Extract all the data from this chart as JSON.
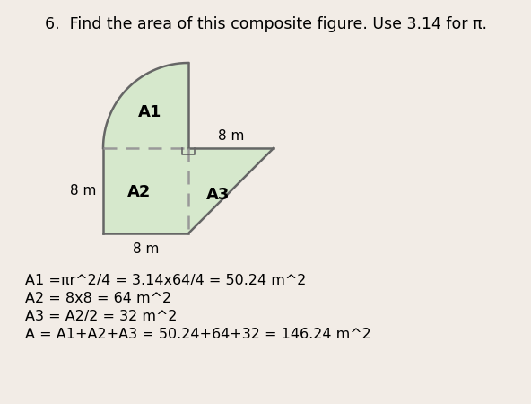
{
  "title": "6.  Find the area of this composite figure. Use 3.14 for π.",
  "title_fontsize": 12.5,
  "label_8m_left": "8 m",
  "label_8m_bottom": "8 m",
  "label_8m_top_tri": "8 m",
  "fill_color": "#d6e8cc",
  "edge_color": "#666666",
  "dash_color": "#999999",
  "A1_label": "A1",
  "A2_label": "A2",
  "A3_label": "A3",
  "equations": [
    "A1 =πr^2/4 = 3.14x64/4 = 50.24 m^2",
    "A2 = 8x8 = 64 m^2",
    "A3 = A2/2 = 32 m^2",
    "A = A1+A2+A3 = 50.24+64+32 = 146.24 m^2"
  ],
  "bg_color": "#f2ece6"
}
